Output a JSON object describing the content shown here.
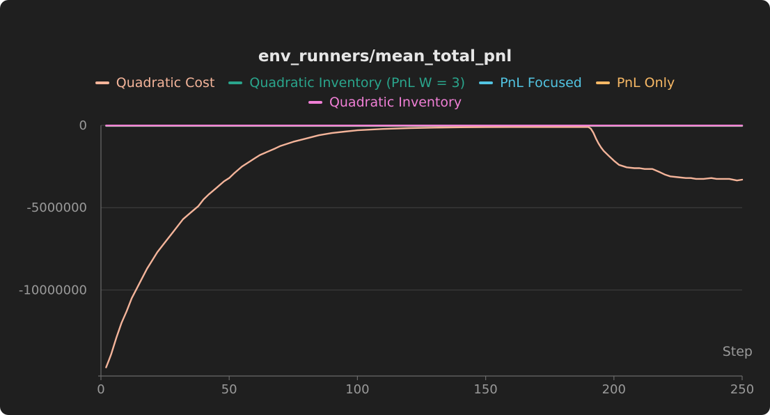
{
  "chart_data": {
    "type": "line",
    "title": "env_runners/mean_total_pnl",
    "xlabel": "Step",
    "ylabel": "",
    "xlim": [
      0,
      250
    ],
    "ylim": [
      -14800000,
      0
    ],
    "grid": true,
    "legend_placement": "top-center",
    "x_ticks": [
      0,
      50,
      100,
      150,
      200,
      250
    ],
    "y_ticks": [
      0,
      -5000000,
      -10000000
    ],
    "x_tick_labels": [
      "0",
      "50",
      "100",
      "150",
      "200",
      "250"
    ],
    "y_tick_labels": [
      "0",
      "-5000000",
      "-10000000"
    ],
    "series": [
      {
        "name": "Quadratic Cost",
        "color": "#f4b49a",
        "x": [
          2,
          3,
          4,
          5,
          6,
          8,
          10,
          12,
          14,
          16,
          18,
          20,
          22,
          25,
          28,
          30,
          32,
          35,
          38,
          40,
          42,
          45,
          48,
          50,
          52,
          55,
          58,
          60,
          62,
          65,
          68,
          70,
          75,
          80,
          85,
          90,
          95,
          100,
          110,
          120,
          130,
          140,
          150,
          160,
          170,
          180,
          190,
          191,
          192,
          193,
          194,
          195,
          196,
          198,
          200,
          202,
          205,
          208,
          210,
          212,
          215,
          218,
          220,
          222,
          225,
          228,
          230,
          232,
          235,
          238,
          240,
          242,
          245,
          248,
          250
        ],
        "y": [
          -14700000,
          -14300000,
          -13900000,
          -13400000,
          -12900000,
          -12000000,
          -11300000,
          -10500000,
          -9900000,
          -9300000,
          -8700000,
          -8200000,
          -7700000,
          -7100000,
          -6500000,
          -6100000,
          -5700000,
          -5300000,
          -4900000,
          -4500000,
          -4200000,
          -3800000,
          -3400000,
          -3200000,
          -2900000,
          -2500000,
          -2200000,
          -2000000,
          -1800000,
          -1600000,
          -1400000,
          -1250000,
          -1000000,
          -800000,
          -600000,
          -470000,
          -380000,
          -300000,
          -220000,
          -170000,
          -140000,
          -120000,
          -110000,
          -100000,
          -100000,
          -100000,
          -100000,
          -200000,
          -450000,
          -800000,
          -1100000,
          -1350000,
          -1550000,
          -1850000,
          -2150000,
          -2400000,
          -2550000,
          -2600000,
          -2600000,
          -2650000,
          -2650000,
          -2850000,
          -3000000,
          -3100000,
          -3150000,
          -3200000,
          -3200000,
          -3250000,
          -3250000,
          -3200000,
          -3250000,
          -3250000,
          -3250000,
          -3350000,
          -3300000
        ]
      },
      {
        "name": "Quadratic Inventory (PnL W = 3)",
        "color": "#2aa58c",
        "x": [
          2,
          250
        ],
        "y": [
          -30000,
          -30000
        ]
      },
      {
        "name": "PnL Focused",
        "color": "#52c4e2",
        "x": [
          2,
          250
        ],
        "y": [
          -40000,
          -40000
        ]
      },
      {
        "name": "PnL Only",
        "color": "#f7b865",
        "x": [
          2,
          250
        ],
        "y": [
          -20000,
          -20000
        ]
      },
      {
        "name": "Quadratic Inventory",
        "color": "#ef7fd5",
        "x": [
          2,
          250
        ],
        "y": [
          -10000,
          -10000
        ]
      }
    ]
  }
}
